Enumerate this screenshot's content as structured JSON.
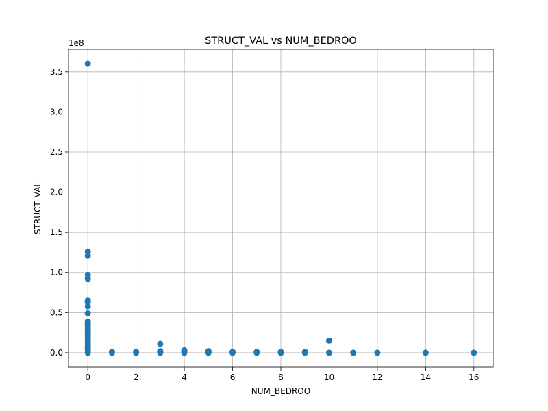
{
  "chart_data": {
    "type": "scatter",
    "title": "STRUCT_VAL vs NUM_BEDROO",
    "xlabel": "NUM_BEDROO",
    "ylabel": "STRUCT_VAL",
    "y_offset_label": "1e8",
    "xlim": [
      -0.8,
      16.8
    ],
    "ylim": [
      -0.18,
      3.78
    ],
    "x_ticks": [
      0,
      2,
      4,
      6,
      8,
      10,
      12,
      14,
      16
    ],
    "x_tick_labels": [
      "0",
      "2",
      "4",
      "6",
      "8",
      "10",
      "12",
      "14",
      "16"
    ],
    "y_ticks": [
      0,
      0.5,
      1.0,
      1.5,
      2.0,
      2.5,
      3.0,
      3.5
    ],
    "y_tick_labels": [
      "0.0",
      "0.5",
      "1.0",
      "1.5",
      "2.0",
      "2.5",
      "3.0",
      "3.5"
    ],
    "grid": true,
    "marker_color": "#1f77b4",
    "points": [
      {
        "x": 0,
        "y": 3.6
      },
      {
        "x": 0,
        "y": 1.26
      },
      {
        "x": 0,
        "y": 1.21
      },
      {
        "x": 0,
        "y": 0.97
      },
      {
        "x": 0,
        "y": 0.92
      },
      {
        "x": 0,
        "y": 0.65
      },
      {
        "x": 0,
        "y": 0.63
      },
      {
        "x": 0,
        "y": 0.58
      },
      {
        "x": 0,
        "y": 0.49
      },
      {
        "x": 0,
        "y": 0.39
      },
      {
        "x": 0,
        "y": 0.36
      },
      {
        "x": 0,
        "y": 0.33
      },
      {
        "x": 0,
        "y": 0.3
      },
      {
        "x": 0,
        "y": 0.27
      },
      {
        "x": 0,
        "y": 0.24
      },
      {
        "x": 0,
        "y": 0.21
      },
      {
        "x": 0,
        "y": 0.18
      },
      {
        "x": 0,
        "y": 0.15
      },
      {
        "x": 0,
        "y": 0.12
      },
      {
        "x": 0,
        "y": 0.09
      },
      {
        "x": 0,
        "y": 0.06
      },
      {
        "x": 0,
        "y": 0.03
      },
      {
        "x": 0,
        "y": 0.0
      },
      {
        "x": 1,
        "y": 0.0
      },
      {
        "x": 1,
        "y": 0.01
      },
      {
        "x": 2,
        "y": 0.0
      },
      {
        "x": 2,
        "y": 0.01
      },
      {
        "x": 3,
        "y": 0.11
      },
      {
        "x": 3,
        "y": 0.0
      },
      {
        "x": 3,
        "y": 0.01
      },
      {
        "x": 3,
        "y": 0.02
      },
      {
        "x": 4,
        "y": 0.03
      },
      {
        "x": 4,
        "y": 0.0
      },
      {
        "x": 4,
        "y": 0.01
      },
      {
        "x": 5,
        "y": 0.0
      },
      {
        "x": 5,
        "y": 0.01
      },
      {
        "x": 5,
        "y": 0.02
      },
      {
        "x": 6,
        "y": 0.0
      },
      {
        "x": 6,
        "y": 0.01
      },
      {
        "x": 7,
        "y": 0.0
      },
      {
        "x": 7,
        "y": 0.01
      },
      {
        "x": 8,
        "y": 0.0
      },
      {
        "x": 8,
        "y": 0.01
      },
      {
        "x": 9,
        "y": 0.0
      },
      {
        "x": 9,
        "y": 0.01
      },
      {
        "x": 10,
        "y": 0.15
      },
      {
        "x": 10,
        "y": 0.0
      },
      {
        "x": 11,
        "y": 0.0
      },
      {
        "x": 12,
        "y": 0.0
      },
      {
        "x": 14,
        "y": 0.0
      },
      {
        "x": 16,
        "y": 0.0
      }
    ]
  }
}
